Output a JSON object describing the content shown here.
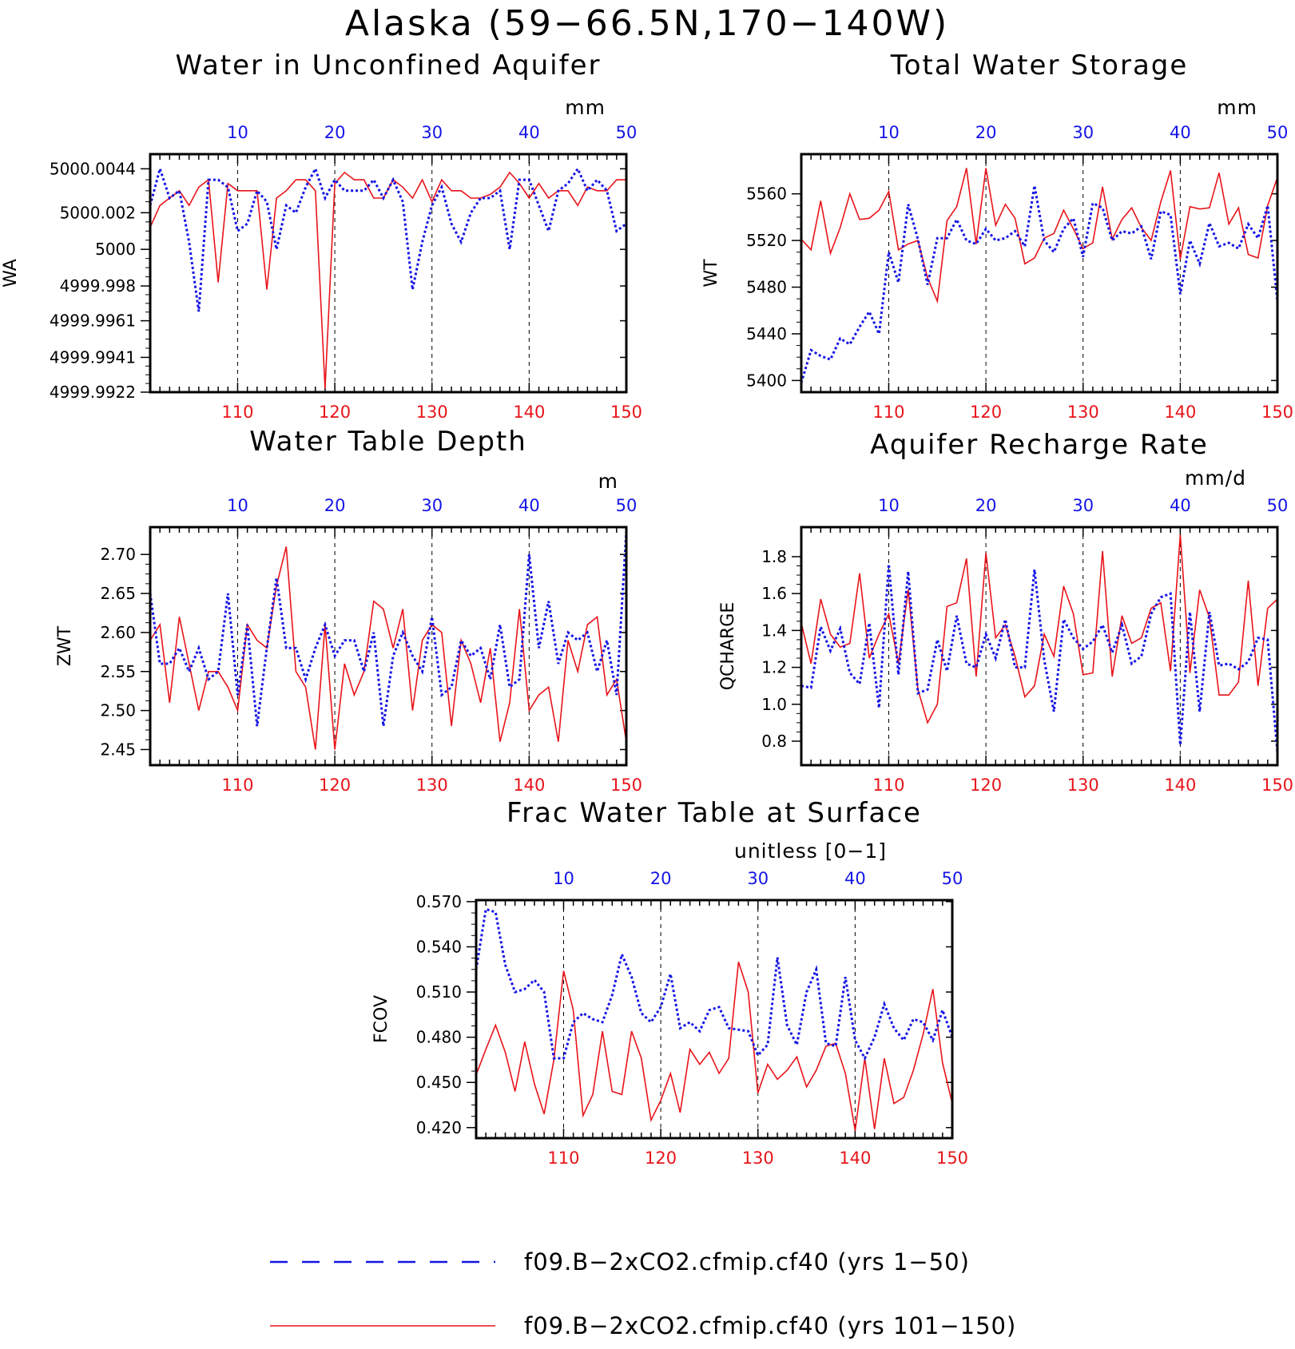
{
  "figure": {
    "title": "Alaska (59−66.5N,170−140W)",
    "colors": {
      "red_series": "#e8141a",
      "blue_series": "#1414e6",
      "axes": "#000000"
    }
  },
  "legend": [
    {
      "label": "f09.B−2xCO2.cfmip.cf40 (yrs 1−50)",
      "color": "#1414e6",
      "style": "dashed"
    },
    {
      "label": "f09.B−2xCO2.cfmip.cf40 (yrs 101−150)",
      "color": "#e8141a",
      "style": "solid"
    }
  ],
  "chart_data": [
    {
      "type": "line",
      "title": "Water in Unconfined Aquifer",
      "units": "mm",
      "ylabel": "WA",
      "bottom_xlim": [
        101,
        150
      ],
      "bottom_xticks": [
        110,
        120,
        130,
        140,
        150
      ],
      "top_xlim": [
        1,
        50
      ],
      "top_xticks": [
        10,
        20,
        30,
        40,
        50
      ],
      "ylim": [
        4999.9922,
        5000.0052
      ],
      "yticks": [
        5000.0044,
        5000.002,
        5000.0,
        4999.998,
        4999.9961,
        4999.9941,
        4999.9922
      ],
      "ytick_positions": [
        5000.0044,
        5000.002,
        5000.0,
        4999.998,
        4999.9961,
        4999.9941,
        4999.9922
      ],
      "grid": "vertical dashed at 10,20,30,40",
      "series": [
        {
          "name": "f09.B−2xCO2.cfmip.cf40 (yrs 101−150)",
          "axis": "bottom",
          "color": "#e8141a",
          "style": "solid",
          "values": [
            5000.0012,
            5000.0024,
            5000.0028,
            5000.0032,
            5000.0024,
            5000.0034,
            5000.0038,
            4999.9982,
            5000.0036,
            5000.0032,
            5000.0032,
            5000.0032,
            4999.9978,
            5000.0028,
            5000.0032,
            5000.0038,
            5000.0038,
            5000.0032,
            4999.9924,
            5000.0036,
            5000.0042,
            5000.0038,
            5000.0038,
            5000.0028,
            5000.0028,
            5000.0038,
            5000.0034,
            5000.0028,
            5000.0038,
            5000.0026,
            5000.0038,
            5000.0032,
            5000.0032,
            5000.0028,
            5000.0028,
            5000.003,
            5000.0034,
            5000.0042,
            5000.0036,
            5000.0028,
            5000.0036,
            5000.0028,
            5000.0032,
            5000.0032,
            5000.0024,
            5000.0034,
            5000.0032,
            5000.0032,
            5000.0038,
            5000.0038
          ]
        },
        {
          "name": "f09.B−2xCO2.cfmip.cf40 (yrs 1−50)",
          "axis": "top",
          "color": "#1414e6",
          "style": "dashed",
          "values": [
            5000.0024,
            5000.0044,
            5000.0028,
            5000.0032,
            5000.0004,
            4999.9966,
            5000.0038,
            5000.0038,
            5000.0034,
            5000.001,
            5000.0014,
            5000.0032,
            5000.0026,
            5000.0,
            5000.0024,
            5000.002,
            5000.0034,
            5000.0044,
            5000.0028,
            5000.0038,
            5000.0032,
            5000.0032,
            5000.0032,
            5000.0038,
            5000.0028,
            5000.0038,
            5000.0026,
            4999.9978,
            5000.0004,
            5000.0024,
            5000.0034,
            5000.0014,
            5000.0004,
            5000.002,
            5000.0028,
            5000.0028,
            5000.0032,
            5000.0,
            5000.0038,
            5000.0038,
            5000.0024,
            5000.001,
            5000.0032,
            5000.0036,
            5000.0044,
            5000.0032,
            5000.0038,
            5000.0032,
            5000.001,
            5000.0014
          ]
        }
      ]
    },
    {
      "type": "line",
      "title": "Total Water Storage",
      "units": "mm",
      "ylabel": "WT",
      "bottom_xlim": [
        101,
        150
      ],
      "bottom_xticks": [
        110,
        120,
        130,
        140,
        150
      ],
      "top_xlim": [
        1,
        50
      ],
      "top_xticks": [
        10,
        20,
        30,
        40,
        50
      ],
      "ylim": [
        5390,
        5594
      ],
      "yticks": [
        5400,
        5440,
        5480,
        5520,
        5560
      ],
      "grid": "vertical dashed at 10,20,30,40",
      "series": [
        {
          "name": "f09.B−2xCO2.cfmip.cf40 (yrs 101−150)",
          "axis": "bottom",
          "color": "#e8141a",
          "style": "solid",
          "values": [
            5521,
            5512,
            5554,
            5509,
            5531,
            5560,
            5538,
            5539,
            5546,
            5562,
            5512,
            5517,
            5520,
            5488,
            5468,
            5537,
            5549,
            5582,
            5517,
            5582,
            5533,
            5551,
            5539,
            5500,
            5505,
            5522,
            5526,
            5546,
            5530,
            5513,
            5518,
            5566,
            5521,
            5538,
            5548,
            5531,
            5520,
            5553,
            5580,
            5504,
            5549,
            5547,
            5548,
            5578,
            5534,
            5548,
            5508,
            5505,
            5550,
            5574
          ]
        },
        {
          "name": "f09.B−2xCO2.cfmip.cf40 (yrs 1−50)",
          "axis": "top",
          "color": "#1414e6",
          "style": "dashed",
          "values": [
            5398,
            5426,
            5421,
            5418,
            5436,
            5431,
            5446,
            5459,
            5440,
            5510,
            5484,
            5551,
            5521,
            5482,
            5522,
            5522,
            5538,
            5520,
            5517,
            5530,
            5520,
            5522,
            5528,
            5515,
            5567,
            5520,
            5510,
            5530,
            5539,
            5506,
            5552,
            5548,
            5520,
            5528,
            5526,
            5532,
            5504,
            5545,
            5542,
            5474,
            5520,
            5500,
            5535,
            5515,
            5518,
            5513,
            5534,
            5522,
            5550,
            5468
          ]
        }
      ]
    },
    {
      "type": "line",
      "title": "Water Table Depth",
      "units": "m",
      "ylabel": "ZWT",
      "bottom_xlim": [
        101,
        150
      ],
      "bottom_xticks": [
        110,
        120,
        130,
        140,
        150
      ],
      "top_xlim": [
        1,
        50
      ],
      "top_xticks": [
        10,
        20,
        30,
        40,
        50
      ],
      "ylim": [
        2.43,
        2.735
      ],
      "yticks": [
        2.45,
        2.5,
        2.55,
        2.6,
        2.65,
        2.7
      ],
      "ytick_labels": [
        "2.45",
        "2.50",
        "2.55",
        "2.60",
        "2.65",
        "2.70"
      ],
      "grid": "vertical dashed at 10,20,30,40",
      "series": [
        {
          "name": "f09.B−2xCO2.cfmip.cf40 (yrs 101−150)",
          "axis": "bottom",
          "color": "#e8141a",
          "style": "solid",
          "values": [
            2.59,
            2.61,
            2.51,
            2.62,
            2.56,
            2.5,
            2.55,
            2.55,
            2.53,
            2.5,
            2.61,
            2.59,
            2.58,
            2.66,
            2.71,
            2.55,
            2.53,
            2.45,
            2.61,
            2.45,
            2.56,
            2.52,
            2.55,
            2.64,
            2.63,
            2.58,
            2.63,
            2.5,
            2.59,
            2.61,
            2.6,
            2.48,
            2.59,
            2.56,
            2.51,
            2.58,
            2.46,
            2.51,
            2.63,
            2.5,
            2.52,
            2.53,
            2.46,
            2.59,
            2.55,
            2.61,
            2.62,
            2.52,
            2.54,
            2.46
          ]
        },
        {
          "name": "f09.B−2xCO2.cfmip.cf40 (yrs 1−50)",
          "axis": "top",
          "color": "#1414e6",
          "style": "dashed",
          "values": [
            2.65,
            2.56,
            2.56,
            2.58,
            2.55,
            2.58,
            2.54,
            2.55,
            2.65,
            2.52,
            2.61,
            2.48,
            2.58,
            2.67,
            2.58,
            2.58,
            2.54,
            2.58,
            2.61,
            2.57,
            2.59,
            2.59,
            2.55,
            2.6,
            2.48,
            2.57,
            2.6,
            2.57,
            2.55,
            2.62,
            2.52,
            2.53,
            2.59,
            2.57,
            2.58,
            2.54,
            2.61,
            2.53,
            2.54,
            2.7,
            2.58,
            2.64,
            2.56,
            2.6,
            2.59,
            2.6,
            2.55,
            2.59,
            2.52,
            2.73
          ]
        }
      ]
    },
    {
      "type": "line",
      "title": "Aquifer Recharge Rate",
      "units": "mm/d",
      "ylabel": "QCHARGE",
      "bottom_xlim": [
        101,
        150
      ],
      "bottom_xticks": [
        110,
        120,
        130,
        140,
        150
      ],
      "top_xlim": [
        1,
        50
      ],
      "top_xticks": [
        10,
        20,
        30,
        40,
        50
      ],
      "ylim": [
        0.67,
        1.96
      ],
      "yticks": [
        0.8,
        1.0,
        1.2,
        1.4,
        1.6,
        1.8
      ],
      "ytick_labels": [
        "0.8",
        "1.0",
        "1.2",
        "1.4",
        "1.6",
        "1.8"
      ],
      "grid": "vertical dashed at 10,20,30,40",
      "series": [
        {
          "name": "f09.B−2xCO2.cfmip.cf40 (yrs 101−150)",
          "axis": "bottom",
          "color": "#e8141a",
          "style": "solid",
          "values": [
            1.44,
            1.22,
            1.57,
            1.38,
            1.31,
            1.33,
            1.71,
            1.25,
            1.38,
            1.49,
            1.22,
            1.62,
            1.08,
            0.9,
            1.0,
            1.53,
            1.55,
            1.79,
            1.15,
            1.82,
            1.36,
            1.43,
            1.26,
            1.04,
            1.1,
            1.38,
            1.26,
            1.64,
            1.49,
            1.16,
            1.17,
            1.83,
            1.15,
            1.48,
            1.33,
            1.36,
            1.52,
            1.55,
            1.18,
            1.92,
            1.17,
            1.62,
            1.47,
            1.05,
            1.05,
            1.12,
            1.67,
            1.1,
            1.52,
            1.57
          ]
        },
        {
          "name": "f09.B−2xCO2.cfmip.cf40 (yrs 1−50)",
          "axis": "top",
          "color": "#1414e6",
          "style": "dashed",
          "values": [
            1.1,
            1.09,
            1.42,
            1.29,
            1.41,
            1.17,
            1.11,
            1.44,
            0.98,
            1.76,
            1.16,
            1.72,
            1.06,
            1.08,
            1.35,
            1.18,
            1.48,
            1.22,
            1.2,
            1.38,
            1.25,
            1.46,
            1.2,
            1.2,
            1.73,
            1.24,
            0.96,
            1.46,
            1.36,
            1.3,
            1.34,
            1.43,
            1.28,
            1.43,
            1.22,
            1.26,
            1.49,
            1.58,
            1.6,
            0.78,
            1.5,
            0.96,
            1.5,
            1.21,
            1.22,
            1.19,
            1.23,
            1.36,
            1.35,
            0.74
          ]
        }
      ]
    },
    {
      "type": "line",
      "title": "Frac Water Table at Surface",
      "units": "unitless [0−1]",
      "ylabel": "FCOV",
      "bottom_xlim": [
        101,
        150
      ],
      "bottom_xticks": [
        110,
        120,
        130,
        140,
        150
      ],
      "top_xlim": [
        1,
        50
      ],
      "top_xticks": [
        10,
        20,
        30,
        40,
        50
      ],
      "ylim": [
        0.413,
        0.571
      ],
      "yticks": [
        0.42,
        0.45,
        0.48,
        0.51,
        0.54,
        0.57
      ],
      "ytick_labels": [
        "0.420",
        "0.450",
        "0.480",
        "0.510",
        "0.540",
        "0.570"
      ],
      "grid": "vertical dashed at 10,20,30,40",
      "series": [
        {
          "name": "f09.B−2xCO2.cfmip.cf40 (yrs 101−150)",
          "axis": "bottom",
          "color": "#e8141a",
          "style": "solid",
          "values": [
            0.455,
            0.472,
            0.488,
            0.47,
            0.444,
            0.477,
            0.449,
            0.429,
            0.465,
            0.524,
            0.498,
            0.428,
            0.442,
            0.484,
            0.444,
            0.442,
            0.484,
            0.466,
            0.425,
            0.438,
            0.456,
            0.43,
            0.472,
            0.462,
            0.47,
            0.456,
            0.466,
            0.53,
            0.51,
            0.443,
            0.462,
            0.452,
            0.458,
            0.467,
            0.447,
            0.458,
            0.474,
            0.476,
            0.456,
            0.418,
            0.466,
            0.419,
            0.466,
            0.436,
            0.44,
            0.458,
            0.482,
            0.512,
            0.463,
            0.436
          ]
        },
        {
          "name": "f09.B−2xCO2.cfmip.cf40 (yrs 1−50)",
          "axis": "top",
          "color": "#1414e6",
          "style": "dashed",
          "values": [
            0.525,
            0.565,
            0.563,
            0.528,
            0.51,
            0.512,
            0.518,
            0.51,
            0.466,
            0.466,
            0.49,
            0.496,
            0.492,
            0.49,
            0.508,
            0.535,
            0.52,
            0.496,
            0.49,
            0.5,
            0.522,
            0.486,
            0.49,
            0.484,
            0.498,
            0.5,
            0.486,
            0.485,
            0.484,
            0.468,
            0.475,
            0.533,
            0.488,
            0.475,
            0.51,
            0.525,
            0.476,
            0.474,
            0.52,
            0.478,
            0.466,
            0.48,
            0.502,
            0.486,
            0.478,
            0.492,
            0.49,
            0.478,
            0.498,
            0.48
          ]
        }
      ]
    }
  ]
}
